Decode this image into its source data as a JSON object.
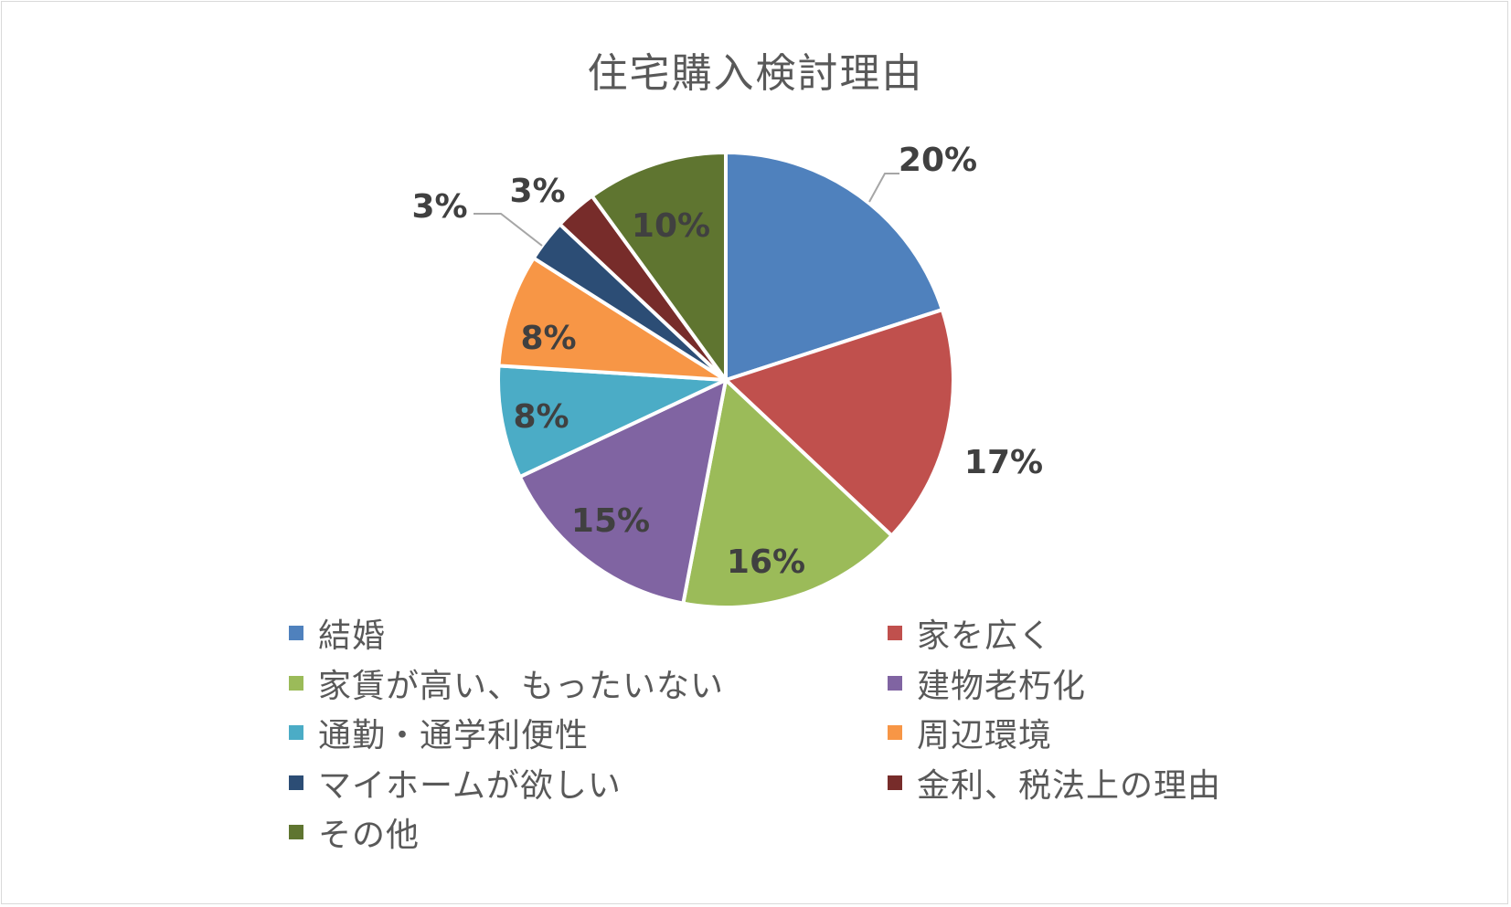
{
  "chart_data": {
    "type": "pie",
    "title": "住宅購入検討理由",
    "categories": [
      "結婚",
      "家を広く",
      "家賃が高い、もったいない",
      "建物老朽化",
      "通勤・通学利便性",
      "周辺環境",
      "マイホームが欲しい",
      "金利、税法上の理由",
      "その他"
    ],
    "values": [
      20,
      17,
      16,
      15,
      8,
      8,
      3,
      3,
      10
    ],
    "value_labels": [
      "20%",
      "17%",
      "16%",
      "15%",
      "8%",
      "8%",
      "3%",
      "3%",
      "10%"
    ],
    "colors": [
      "#4f81bd",
      "#c0504d",
      "#9bbb59",
      "#8064a2",
      "#4bacc6",
      "#f79646",
      "#2c4d75",
      "#772c2a",
      "#5f7530"
    ],
    "legend_position": "bottom",
    "start_angle_deg": 0,
    "direction": "clockwise"
  }
}
